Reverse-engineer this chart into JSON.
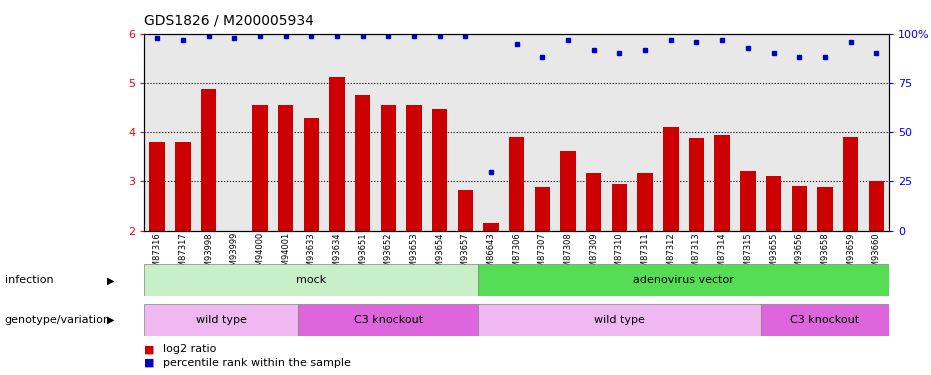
{
  "title": "GDS1826 / M200005934",
  "samples": [
    "GSM87316",
    "GSM87317",
    "GSM93998",
    "GSM93999",
    "GSM94000",
    "GSM94001",
    "GSM93633",
    "GSM93634",
    "GSM93651",
    "GSM93652",
    "GSM93653",
    "GSM93654",
    "GSM93657",
    "GSM86643",
    "GSM87306",
    "GSM87307",
    "GSM87308",
    "GSM87309",
    "GSM87310",
    "GSM87311",
    "GSM87312",
    "GSM87313",
    "GSM87314",
    "GSM87315",
    "GSM93655",
    "GSM93656",
    "GSM93658",
    "GSM93659",
    "GSM93660"
  ],
  "log2_ratio": [
    3.8,
    3.8,
    4.88,
    2.0,
    4.55,
    4.55,
    4.28,
    5.12,
    4.75,
    4.55,
    4.55,
    4.48,
    2.82,
    2.15,
    3.9,
    2.88,
    3.62,
    3.18,
    2.95,
    3.18,
    4.1,
    3.88,
    3.95,
    3.22,
    3.12,
    2.9,
    2.88,
    3.9,
    3.0
  ],
  "percentile_vals": [
    98,
    97,
    99,
    98,
    99,
    99,
    99,
    99,
    99,
    99,
    99,
    99,
    99,
    30,
    95,
    88,
    97,
    92,
    90,
    92,
    97,
    96,
    97,
    93,
    90,
    88,
    88,
    96,
    90
  ],
  "infection_groups": [
    {
      "label": "mock",
      "start": 0,
      "end": 12,
      "color": "#c8f0c8"
    },
    {
      "label": "adenovirus vector",
      "start": 13,
      "end": 28,
      "color": "#55dd55"
    }
  ],
  "genotype_groups": [
    {
      "label": "wild type",
      "start": 0,
      "end": 5,
      "color": "#f0b8f0"
    },
    {
      "label": "C3 knockout",
      "start": 6,
      "end": 12,
      "color": "#dd66dd"
    },
    {
      "label": "wild type",
      "start": 13,
      "end": 23,
      "color": "#f0b8f0"
    },
    {
      "label": "C3 knockout",
      "start": 24,
      "end": 28,
      "color": "#dd66dd"
    }
  ],
  "bar_color": "#cc0000",
  "dot_color": "#0000cc",
  "ylim_left": [
    2,
    6
  ],
  "ylim_right": [
    0,
    100
  ],
  "yticks_left": [
    2,
    3,
    4,
    5,
    6
  ],
  "yticks_right": [
    0,
    25,
    50,
    75,
    100
  ],
  "right_tick_labels": [
    "0",
    "25",
    "50",
    "75",
    "100%"
  ],
  "background_color": "#e8e8e8",
  "title_fontsize": 10,
  "label_fontsize": 7
}
